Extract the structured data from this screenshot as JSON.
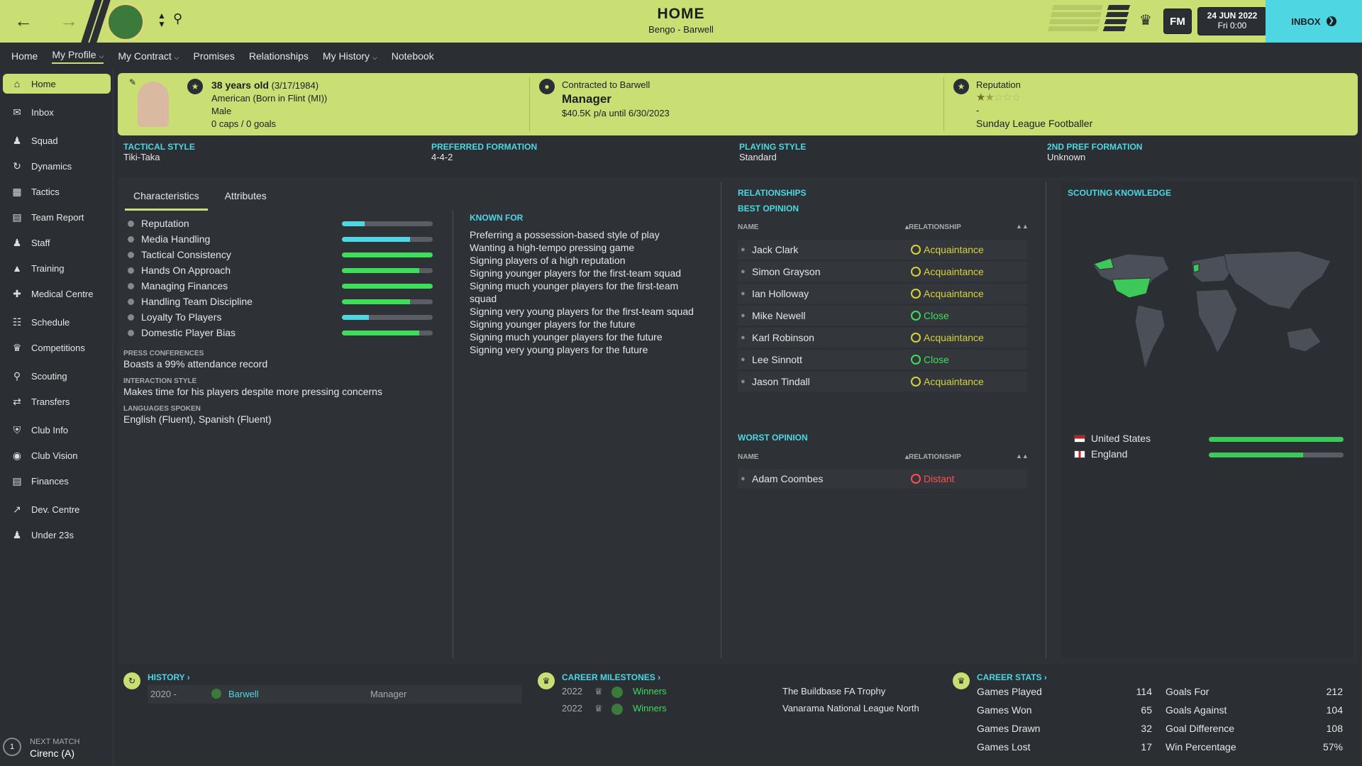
{
  "header": {
    "title": "HOME",
    "subtitle": "Bengo - Barwell",
    "fm": "FM",
    "date": "24 JUN 2022",
    "time": "Fri 0:00",
    "inbox": "INBOX"
  },
  "subnav": [
    "Home",
    "My Profile",
    "My Contract",
    "Promises",
    "Relationships",
    "My History",
    "Notebook"
  ],
  "sidebar": [
    "Home",
    "Inbox",
    "Squad",
    "Dynamics",
    "Tactics",
    "Team Report",
    "Staff",
    "Training",
    "Medical Centre",
    "Schedule",
    "Competitions",
    "Scouting",
    "Transfers",
    "Club Info",
    "Club Vision",
    "Finances",
    "Dev. Centre",
    "Under 23s"
  ],
  "next_match": {
    "label": "NEXT MATCH",
    "value": "Cirenc (A)",
    "number": "1"
  },
  "profile": {
    "age": "38 years old",
    "dob": "(3/17/1984)",
    "nationality": "American (Born in Flint (MI))",
    "gender": "Male",
    "caps": "0 caps / 0 goals",
    "contract_label": "Contracted to Barwell",
    "role": "Manager",
    "salary": "$40.5K p/a until 6/30/2023",
    "rep_label": "Reputation",
    "rep_stars": 1.5,
    "rep_dash": "-",
    "rep_level": "Sunday League Footballer"
  },
  "styles": [
    {
      "h": "TACTICAL STYLE",
      "v": "Tiki-Taka"
    },
    {
      "h": "PREFERRED FORMATION",
      "v": "4-4-2"
    },
    {
      "h": "PLAYING STYLE",
      "v": "Standard"
    },
    {
      "h": "2ND PREF FORMATION",
      "v": "Unknown"
    }
  ],
  "tabs": [
    "Characteristics",
    "Attributes"
  ],
  "characteristics": [
    {
      "name": "Reputation",
      "value": 0.25,
      "color": "#4ed7e2"
    },
    {
      "name": "Media Handling",
      "value": 0.75,
      "color": "#4ed7e2"
    },
    {
      "name": "Tactical Consistency",
      "value": 1.0,
      "color": "#3dde5a"
    },
    {
      "name": "Hands On Approach",
      "value": 0.85,
      "color": "#3dde5a"
    },
    {
      "name": "Managing Finances",
      "value": 1.0,
      "color": "#3dde5a"
    },
    {
      "name": "Handling Team Discipline",
      "value": 0.75,
      "color": "#3dde5a"
    },
    {
      "name": "Loyalty To Players",
      "value": 0.3,
      "color": "#4ed7e2"
    },
    {
      "name": "Domestic Player Bias",
      "value": 0.85,
      "color": "#3dde5a"
    }
  ],
  "press": {
    "h": "PRESS CONFERENCES",
    "v": "Boasts a 99% attendance record"
  },
  "interaction": {
    "h": "INTERACTION STYLE",
    "v": "Makes time for his players despite more pressing concerns"
  },
  "languages": {
    "h": "LANGUAGES SPOKEN",
    "v": "English (Fluent), Spanish (Fluent)"
  },
  "known_for": {
    "h": "KNOWN FOR",
    "items": [
      "Preferring a possession-based style of play",
      "Wanting a high-tempo pressing game",
      "Signing players of a high reputation",
      "Signing younger players for the first-team squad",
      "Signing much younger players for the first-team",
      "squad",
      "Signing very young players for the first-team squad",
      "Signing younger players for the future",
      "Signing much younger players for the future",
      "Signing very young players for the future"
    ]
  },
  "relationships": {
    "h": "RELATIONSHIPS",
    "best_h": "BEST OPINION",
    "worst_h": "WORST OPINION",
    "col_name": "NAME",
    "col_rel": "RELATIONSHIP",
    "best": [
      {
        "name": "Jack Clark",
        "status": "Acquaintance",
        "color": "#d6d23a"
      },
      {
        "name": "Simon Grayson",
        "status": "Acquaintance",
        "color": "#d6d23a"
      },
      {
        "name": "Ian Holloway",
        "status": "Acquaintance",
        "color": "#d6d23a"
      },
      {
        "name": "Mike Newell",
        "status": "Close",
        "color": "#3dde5a"
      },
      {
        "name": "Karl Robinson",
        "status": "Acquaintance",
        "color": "#d6d23a"
      },
      {
        "name": "Lee Sinnott",
        "status": "Close",
        "color": "#3dde5a"
      },
      {
        "name": "Jason Tindall",
        "status": "Acquaintance",
        "color": "#d6d23a"
      }
    ],
    "worst": [
      {
        "name": "Adam Coombes",
        "status": "Distant",
        "color": "#ff4d4d"
      }
    ]
  },
  "scouting": {
    "h": "SCOUTING KNOWLEDGE",
    "countries": [
      {
        "name": "United States",
        "value": 1.0
      },
      {
        "name": "England",
        "value": 0.7
      }
    ]
  },
  "history": {
    "h": "HISTORY",
    "rows": [
      {
        "years": "2020 -",
        "club": "Barwell",
        "role": "Manager"
      }
    ]
  },
  "milestones": {
    "h": "CAREER MILESTONES",
    "rows": [
      {
        "year": "2022",
        "result": "Winners",
        "comp": "The Buildbase FA Trophy"
      },
      {
        "year": "2022",
        "result": "Winners",
        "comp": "Vanarama National League North"
      }
    ]
  },
  "stats": {
    "h": "CAREER STATS",
    "left": [
      {
        "k": "Games Played",
        "v": "114"
      },
      {
        "k": "Games Won",
        "v": "65"
      },
      {
        "k": "Games Drawn",
        "v": "32"
      },
      {
        "k": "Games Lost",
        "v": "17"
      }
    ],
    "right": [
      {
        "k": "Goals For",
        "v": "212"
      },
      {
        "k": "Goals Against",
        "v": "104"
      },
      {
        "k": "Goal Difference",
        "v": "108"
      },
      {
        "k": "Win Percentage",
        "v": "57%"
      }
    ]
  }
}
